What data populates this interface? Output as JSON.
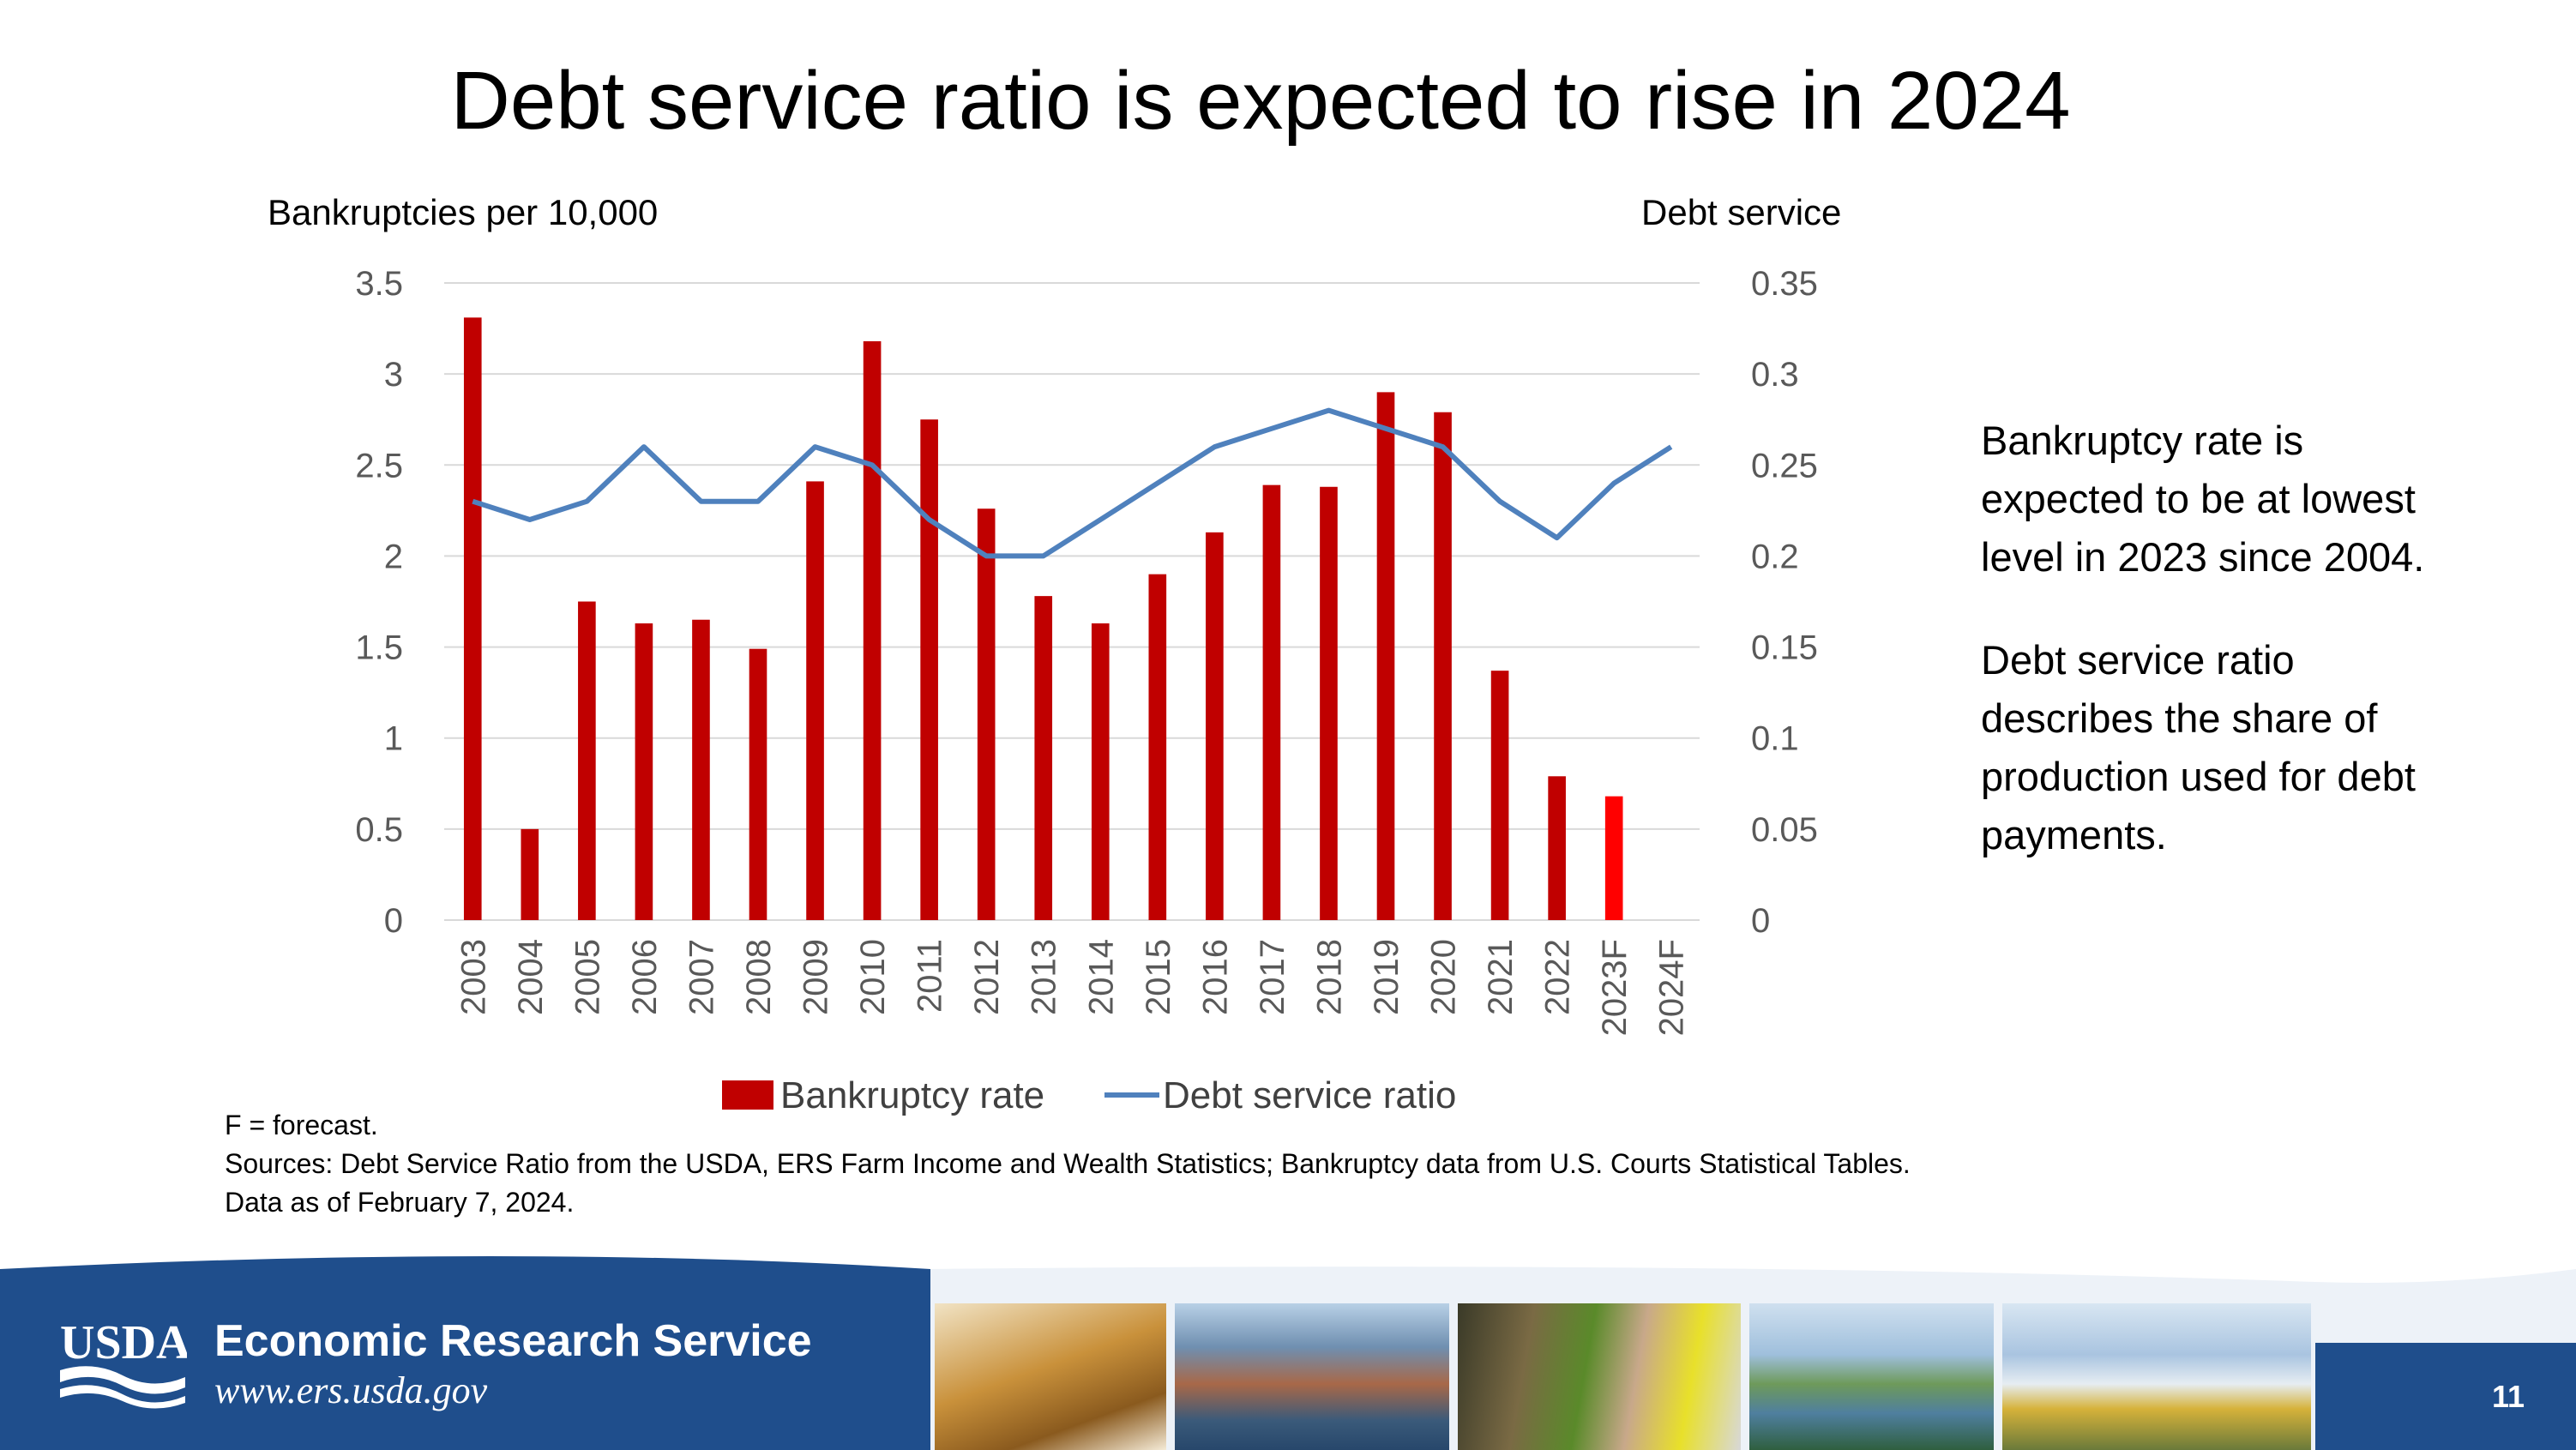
{
  "slide": {
    "title": "Debt service ratio is expected to rise in 2024",
    "side_note": [
      "Bankruptcy rate is expected to be at lowest level in 2023 since 2004.",
      "Debt service ratio describes the share of production used for debt payments."
    ],
    "footnote_forecast": "F = forecast.",
    "footnote_sources": "Sources:  Debt Service Ratio from the USDA, ERS Farm Income and Wealth Statistics; Bankruptcy data from U.S. Courts Statistical Tables. Data as of February 7, 2024.",
    "page_number": "11"
  },
  "footer": {
    "logo_text": "USDA",
    "org_name": "Economic Research Service",
    "url": "www.ers.usda.gov",
    "photos": [
      "wheat-photo",
      "cargo-ship-photo",
      "produce-market-photo",
      "wetland-photo",
      "town-photo"
    ]
  },
  "chart_data": {
    "type": "bar",
    "categories": [
      "2003",
      "2004",
      "2005",
      "2006",
      "2007",
      "2008",
      "2009",
      "2010",
      "2011",
      "2012",
      "2013",
      "2014",
      "2015",
      "2016",
      "2017",
      "2018",
      "2019",
      "2020",
      "2021",
      "2022",
      "2023F",
      "2024F"
    ],
    "series": [
      {
        "name": "Bankruptcy rate",
        "type": "bar",
        "axis": "left",
        "color": "#C00000",
        "forecast_color": "#FF0000",
        "values": [
          3.31,
          0.5,
          1.75,
          1.63,
          1.65,
          1.49,
          2.41,
          3.18,
          2.75,
          2.26,
          1.78,
          1.63,
          1.9,
          2.13,
          2.39,
          2.38,
          2.9,
          2.79,
          1.37,
          0.79,
          0.68,
          null
        ]
      },
      {
        "name": "Debt service ratio",
        "type": "line",
        "axis": "right",
        "color": "#4F81BD",
        "values": [
          0.23,
          0.22,
          0.23,
          0.26,
          0.23,
          0.23,
          0.26,
          0.25,
          0.22,
          0.2,
          0.2,
          0.22,
          0.24,
          0.26,
          0.27,
          0.28,
          0.27,
          0.26,
          0.23,
          0.21,
          0.24,
          0.26
        ]
      }
    ],
    "ylabel_left": "Bankruptcies per 10,000",
    "ylabel_right": "Debt service",
    "ylim_left": [
      0,
      3.5
    ],
    "ylim_right": [
      0,
      0.35
    ],
    "yticks_left": [
      "0",
      "0.5",
      "1",
      "1.5",
      "2",
      "2.5",
      "3",
      "3.5"
    ],
    "yticks_right": [
      "0",
      "0.05",
      "0.1",
      "0.15",
      "0.2",
      "0.25",
      "0.3",
      "0.35"
    ],
    "grid": true,
    "legend_position": "bottom"
  }
}
